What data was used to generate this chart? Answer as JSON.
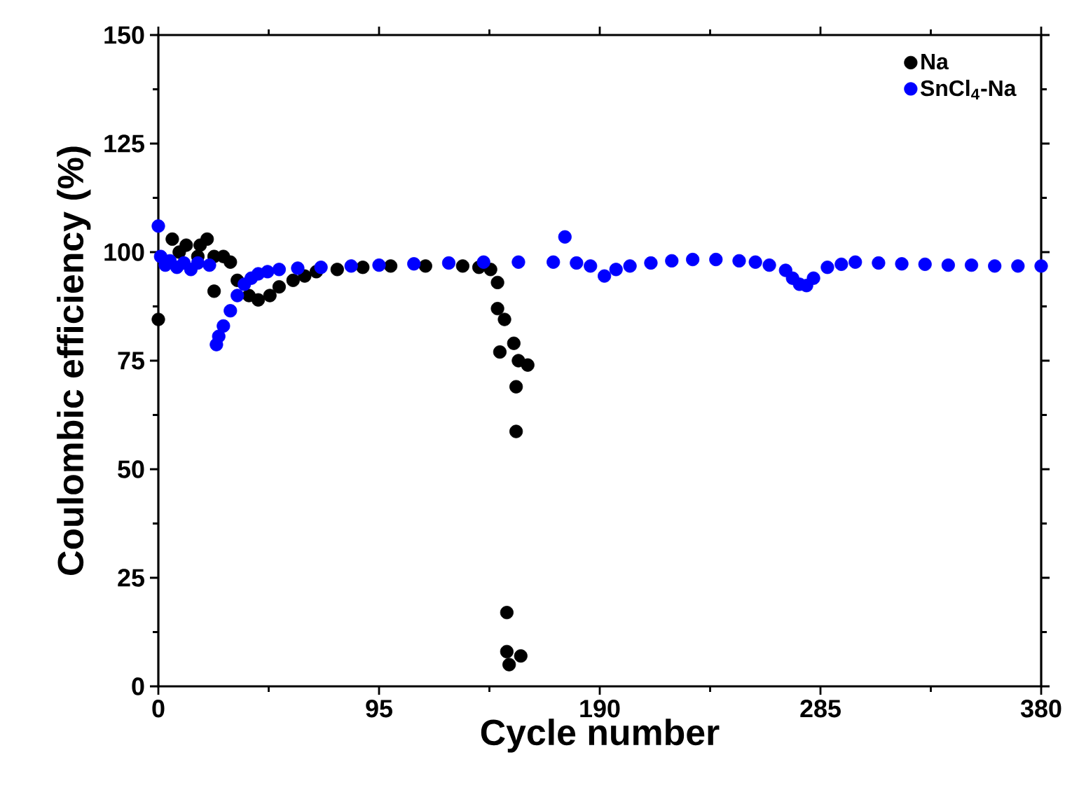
{
  "chart_data": {
    "type": "scatter",
    "xlabel": "Cycle number",
    "ylabel": "Coulombic efficiency (%)",
    "xlim": [
      0,
      380
    ],
    "ylim": [
      0,
      150
    ],
    "xticks": [
      0,
      95,
      190,
      285,
      380
    ],
    "yticks": [
      0,
      25,
      50,
      75,
      100,
      125,
      150
    ],
    "legend": "top right",
    "marker": "circle",
    "series": [
      {
        "name": "Na",
        "color": "#000000",
        "x": [
          0,
          3,
          6,
          9,
          12,
          15,
          17,
          18,
          21,
          24,
          24,
          28,
          31,
          34,
          37,
          39,
          43,
          48,
          52,
          58,
          63,
          68,
          77,
          88,
          100,
          115,
          131,
          138,
          143,
          146,
          146,
          149,
          147,
          153,
          155,
          159,
          154,
          154,
          150,
          150,
          151,
          156
        ],
        "values": [
          84.5,
          null,
          103,
          100,
          101.6,
          null,
          99,
          101.6,
          103,
          99,
          91,
          99,
          97.7,
          93.5,
          null,
          90,
          89,
          90,
          92,
          93.5,
          94.5,
          95.5,
          96,
          96.5,
          96.8,
          96.8,
          96.8,
          96.5,
          96,
          93,
          87,
          84.5,
          77,
          79,
          75,
          74,
          69,
          58.7,
          17,
          8,
          5,
          7
        ]
      },
      {
        "name": "SnCl$_{4}$-Na",
        "color": "#0000ff",
        "x": [
          0,
          1,
          3,
          5,
          8,
          11,
          14,
          17,
          20,
          22,
          25,
          26,
          28,
          31,
          34,
          37,
          40,
          43,
          47,
          52,
          60,
          70,
          83,
          95,
          110,
          125,
          140,
          155,
          170,
          175,
          180,
          186,
          192,
          197,
          203,
          212,
          221,
          230,
          240,
          250,
          257,
          263,
          270,
          273,
          276,
          279,
          282,
          288,
          294,
          300,
          310,
          320,
          330,
          340,
          350,
          360,
          370,
          380
        ],
        "values": [
          106,
          99,
          97,
          98,
          96.5,
          97.5,
          96,
          97.5,
          null,
          97,
          78.7,
          80.6,
          83,
          86.5,
          90,
          92.6,
          94,
          95,
          95.5,
          96,
          96.3,
          96.5,
          96.8,
          97,
          97.3,
          97.5,
          97.7,
          97.7,
          97.7,
          103.5,
          97.5,
          96.8,
          94.5,
          96,
          96.8,
          97.5,
          98,
          98.3,
          98.3,
          98,
          97.7,
          97,
          95.8,
          94,
          92.6,
          92.3,
          94,
          96.5,
          97.2,
          97.7,
          97.5,
          97.3,
          97.2,
          97,
          97,
          96.8,
          96.8,
          96.8
        ]
      }
    ]
  }
}
